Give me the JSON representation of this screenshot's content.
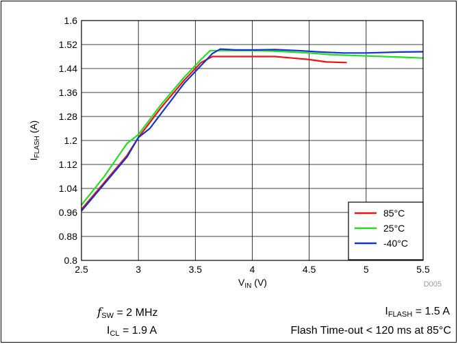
{
  "chart_data": {
    "type": "line",
    "title": "",
    "xlabel": {
      "base": "V",
      "sub": "IN",
      "suffix": " (V)"
    },
    "ylabel": {
      "base": "I",
      "sub": "FLASH",
      "suffix": " (A)"
    },
    "xlim": [
      2.5,
      5.5
    ],
    "ylim": [
      0.8,
      1.6
    ],
    "xticks": [
      2.5,
      3,
      3.5,
      4,
      4.5,
      5,
      5.5
    ],
    "xtick_labels": [
      "2.5",
      "3",
      "3.5",
      "4",
      "4.5",
      "5",
      "5.5"
    ],
    "yticks": [
      0.8,
      0.88,
      0.96,
      1.04,
      1.12,
      1.2,
      1.28,
      1.36,
      1.44,
      1.52,
      1.6
    ],
    "ytick_labels": [
      "0.8",
      "0.88",
      "0.96",
      "1.04",
      "1.12",
      "1.2",
      "1.28",
      "1.36",
      "1.44",
      "1.52",
      "1.6"
    ],
    "grid": true,
    "legend_position": "bottom-right",
    "series": [
      {
        "name": "85°C",
        "color": "#ee1111",
        "points": [
          [
            2.5,
            0.97
          ],
          [
            2.7,
            1.06
          ],
          [
            2.9,
            1.15
          ],
          [
            3.0,
            1.21
          ],
          [
            3.2,
            1.31
          ],
          [
            3.4,
            1.4
          ],
          [
            3.55,
            1.46
          ],
          [
            3.65,
            1.48
          ],
          [
            3.8,
            1.48
          ],
          [
            4.0,
            1.48
          ],
          [
            4.2,
            1.48
          ],
          [
            4.35,
            1.475
          ],
          [
            4.5,
            1.47
          ],
          [
            4.65,
            1.462
          ],
          [
            4.83,
            1.46
          ]
        ]
      },
      {
        "name": "25°C",
        "color": "#22dd22",
        "points": [
          [
            2.5,
            0.985
          ],
          [
            2.7,
            1.08
          ],
          [
            2.9,
            1.19
          ],
          [
            3.0,
            1.22
          ],
          [
            3.2,
            1.32
          ],
          [
            3.4,
            1.41
          ],
          [
            3.55,
            1.47
          ],
          [
            3.63,
            1.5
          ],
          [
            3.75,
            1.5
          ],
          [
            4.0,
            1.5
          ],
          [
            4.2,
            1.498
          ],
          [
            4.5,
            1.492
          ],
          [
            4.7,
            1.486
          ],
          [
            5.0,
            1.482
          ],
          [
            5.3,
            1.478
          ],
          [
            5.5,
            1.475
          ]
        ]
      },
      {
        "name": "-40°C",
        "color": "#1133cc",
        "points": [
          [
            2.5,
            0.965
          ],
          [
            2.7,
            1.055
          ],
          [
            2.9,
            1.145
          ],
          [
            3.0,
            1.21
          ],
          [
            3.1,
            1.24
          ],
          [
            3.2,
            1.29
          ],
          [
            3.4,
            1.39
          ],
          [
            3.55,
            1.45
          ],
          [
            3.65,
            1.49
          ],
          [
            3.72,
            1.505
          ],
          [
            3.85,
            1.502
          ],
          [
            4.0,
            1.502
          ],
          [
            4.2,
            1.503
          ],
          [
            4.4,
            1.5
          ],
          [
            4.6,
            1.495
          ],
          [
            4.8,
            1.492
          ],
          [
            5.0,
            1.492
          ],
          [
            5.3,
            1.495
          ],
          [
            5.5,
            1.496
          ]
        ]
      }
    ],
    "figure_code": "D005"
  },
  "notes": {
    "fsw": {
      "symbol": "f",
      "sub": "SW",
      "value": " = 2 MHz"
    },
    "icl": {
      "base": "I",
      "sub": "CL",
      "value": " = 1.9 A"
    },
    "iflash": {
      "base": "I",
      "sub": "FLASH",
      "value": " = 1.5 A"
    },
    "timeout": "Flash Time-out < 120 ms at 85°C"
  }
}
